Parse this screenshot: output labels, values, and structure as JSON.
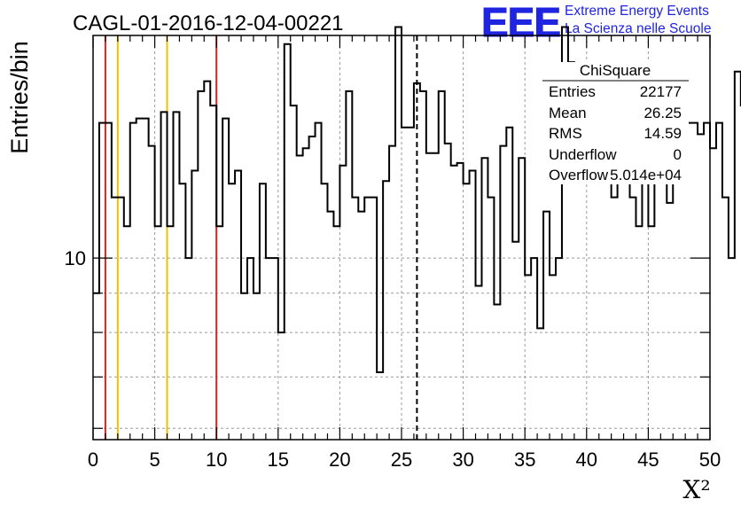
{
  "header": {
    "run_title": "CAGL-01-2016-12-04-00221",
    "logo_text": "EEE",
    "logo_line1": "Extreme Energy Events",
    "logo_line2": "La Scienza nelle Scuole",
    "logo_color": "#1f24e0"
  },
  "stats_box": {
    "title": "ChiSquare",
    "rows": [
      {
        "label": "Entries",
        "value": "22177"
      },
      {
        "label": "Mean",
        "value": "26.25"
      },
      {
        "label": "RMS",
        "value": "14.59"
      },
      {
        "label": "Underflow",
        "value": "0"
      },
      {
        "label": "Overflow",
        "value": "5.014e+04"
      }
    ]
  },
  "chart_data": {
    "type": "histogram",
    "title": "CAGL-01-2016-12-04-00221",
    "xlabel": "X²",
    "ylabel": "Entries/bin",
    "xlim": [
      0,
      50
    ],
    "ylim": [
      5.8,
      19.5
    ],
    "yscale": "log",
    "grid": true,
    "bin_width": 0.5,
    "x_ticks": [
      0,
      5,
      10,
      15,
      20,
      25,
      30,
      35,
      40,
      45,
      50
    ],
    "y_ticks": [
      10
    ],
    "values": [
      9,
      15,
      15,
      12,
      12,
      11,
      15,
      15.2,
      15.2,
      14,
      11,
      15.5,
      11,
      15.5,
      12.5,
      10,
      13,
      16.5,
      17,
      15.8,
      11,
      15.2,
      12.5,
      13,
      9,
      10,
      9,
      12.5,
      10,
      10,
      8,
      19,
      15.8,
      13.6,
      13.9,
      14.4,
      15,
      12.5,
      11.5,
      11,
      13.2,
      16.5,
      12,
      11.5,
      12,
      12,
      7.1,
      12.6,
      14,
      20,
      14.8,
      14.8,
      16.9,
      16.5,
      13.7,
      13.7,
      16.5,
      14.1,
      13.2,
      13.3,
      12.5,
      13,
      9.2,
      13.5,
      12,
      8.7,
      14,
      14.8,
      10.5,
      13.5,
      9.5,
      10,
      8.1,
      11.5,
      9.5,
      10,
      20,
      18,
      16.5,
      17,
      16.9,
      16.7,
      14.2,
      13.2,
      12,
      14.2,
      13.8,
      12,
      11,
      14.4,
      11,
      13.8,
      13.4,
      11.8,
      14.6,
      15,
      15,
      15,
      14.5,
      15,
      13.9,
      15,
      12,
      10,
      17.5,
      15.8,
      15,
      15,
      14.2,
      14.8,
      14.2,
      14.8,
      13.6,
      17,
      15.8,
      15,
      13.2,
      16.9,
      16.2,
      13.6,
      12.6,
      11.5,
      13,
      16.9,
      12.4,
      14.6,
      13,
      12,
      16,
      15,
      15,
      15.8,
      13.8,
      14,
      12,
      14.3,
      13.5,
      11.5,
      14.4,
      15,
      12,
      15,
      15.8,
      15.5,
      16.2,
      15,
      14.2,
      13.2,
      10,
      17.5,
      14.2,
      11.5
    ],
    "vertical_lines": [
      {
        "x": 1,
        "color": "#e02020",
        "style": "solid"
      },
      {
        "x": 2,
        "color": "#f0c000",
        "style": "solid"
      },
      {
        "x": 6,
        "color": "#f0c000",
        "style": "solid"
      },
      {
        "x": 10,
        "color": "#e02020",
        "style": "solid"
      },
      {
        "x": 26.25,
        "color": "#000000",
        "style": "dashed"
      }
    ]
  }
}
